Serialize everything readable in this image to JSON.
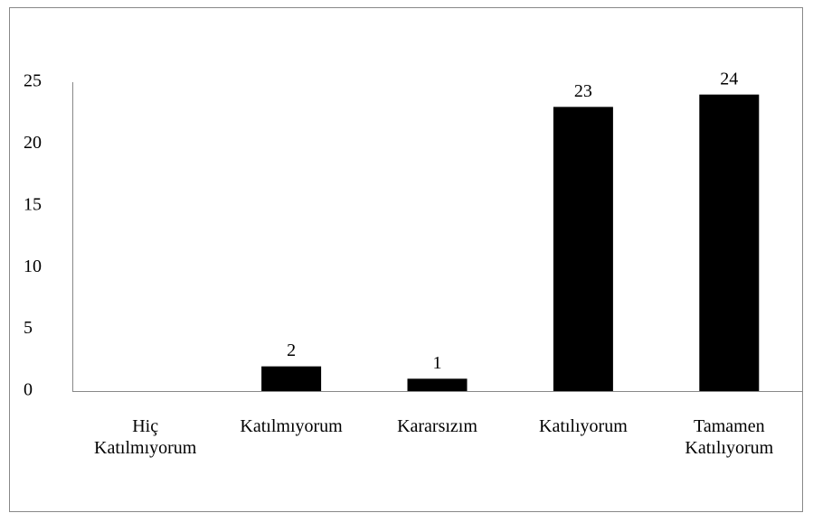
{
  "chart_data": {
    "type": "bar",
    "categories": [
      "Hiç Katılmıyorum",
      "Katılmıyorum",
      "Kararsızım",
      "Katılıyorum",
      "Tamamen Katılıyorum"
    ],
    "values": [
      0,
      2,
      1,
      23,
      24
    ],
    "value_labels": [
      null,
      "2",
      "1",
      "23",
      "24"
    ],
    "color": "#000000",
    "ylim": [
      0,
      25
    ],
    "yticks": [
      0,
      5,
      10,
      15,
      20,
      25
    ],
    "grid": false
  }
}
